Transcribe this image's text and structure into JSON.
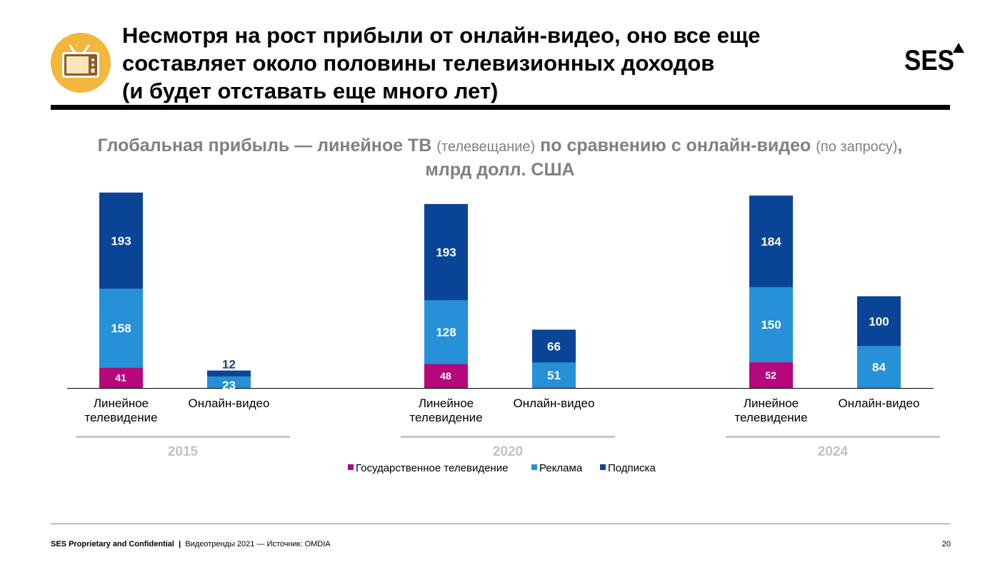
{
  "header": {
    "title_lines": [
      "Несмотря на рост прибыли от онлайн-видео, оно все еще",
      "составляет около половины телевизионных доходов",
      "(и будет отставать еще много лет)"
    ],
    "logo_text": "SES"
  },
  "subtitle": {
    "part1": "Глобальная прибыль — линейное ТВ ",
    "part1_note": "(телевещание)",
    "part2": " по сравнению с онлайн-видео ",
    "part2_note": "(по запросу)",
    "part3": ",",
    "line2": "млрд долл. США"
  },
  "colors": {
    "public_tv": "#b5087d",
    "advertising": "#2690d8",
    "subscription": "#0a4496",
    "group_bar": "#c8c8c8",
    "year_label": "#c3c3c3"
  },
  "chart_data": {
    "type": "bar",
    "stacked": true,
    "title": "Глобальная прибыль — линейное ТВ (телевещание) по сравнению с онлайн-видео (по запросу), млрд долл. США",
    "groups": [
      "2015",
      "2020",
      "2024"
    ],
    "categories": [
      "Линейное телевидение",
      "Онлайн-видео"
    ],
    "series": [
      {
        "name": "Государственное телевидение",
        "color_key": "public_tv",
        "values": [
          [
            41,
            null
          ],
          [
            48,
            null
          ],
          [
            52,
            null
          ]
        ]
      },
      {
        "name": "Реклама",
        "color_key": "advertising",
        "values": [
          [
            158,
            23
          ],
          [
            128,
            51
          ],
          [
            150,
            84
          ]
        ]
      },
      {
        "name": "Подписка",
        "color_key": "subscription",
        "values": [
          [
            193,
            12
          ],
          [
            193,
            66
          ],
          [
            184,
            100
          ]
        ]
      }
    ],
    "legend_position": "bottom",
    "xlabel": "",
    "ylabel": "",
    "ylim": [
      0,
      392
    ]
  },
  "footer": {
    "confidential": "SES Proprietary and Confidential",
    "separator": "|",
    "source": "Видеотренды 2021 — Источник: OMDIA",
    "page_number": "20"
  }
}
